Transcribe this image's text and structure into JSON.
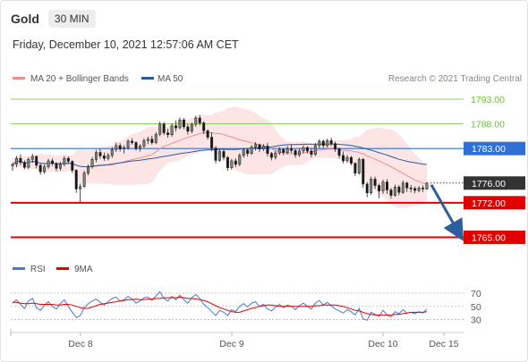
{
  "header": {
    "instrument": "Gold",
    "interval": "30 MIN",
    "datetime": "Friday, December 10, 2021 12:57:06 AM CET"
  },
  "credit": "Research © 2021 Trading Central",
  "legend": {
    "items": [
      {
        "label": "MA 20 + Bollinger Bands",
        "color": "#f08c8c"
      },
      {
        "label": "MA 50",
        "color": "#2b5a9c"
      }
    ]
  },
  "rsi_legend": {
    "items": [
      {
        "label": "RSI",
        "color": "#4a78d0"
      },
      {
        "label": "9MA",
        "color": "#e00000"
      }
    ]
  },
  "chart_data": [
    {
      "type": "candlestick",
      "title": "Gold",
      "x_labels": [
        "Dec 8",
        "Dec 9",
        "Dec 10",
        "Dec 15"
      ],
      "ylim": [
        1762,
        1795
      ],
      "current_price": {
        "value": "1776.00",
        "color": "#333333"
      },
      "levels": [
        {
          "value": "1793.00",
          "color": "#6cbf3a",
          "style": "thin",
          "label_style": "text"
        },
        {
          "value": "1788.00",
          "color": "#6cbf3a",
          "style": "thin",
          "label_style": "text"
        },
        {
          "value": "1783.00",
          "color": "#2f6fd6",
          "style": "medium",
          "label_style": "tag"
        },
        {
          "value": "1772.00",
          "color": "#e00000",
          "style": "thick",
          "label_style": "tag"
        },
        {
          "value": "1765.00",
          "color": "#e00000",
          "style": "thick",
          "label_style": "tag"
        }
      ],
      "forecast_arrow": {
        "from": 1776,
        "to": 1765,
        "color": "#2c5f9e"
      },
      "candles": [
        [
          1779.5,
          1780.0,
          1778.5,
          1779.8
        ],
        [
          1779.8,
          1781.5,
          1779.2,
          1781.0
        ],
        [
          1781.0,
          1781.8,
          1779.6,
          1780.2
        ],
        [
          1780.2,
          1780.6,
          1778.8,
          1779.2
        ],
        [
          1779.2,
          1781.2,
          1778.8,
          1780.8
        ],
        [
          1780.8,
          1781.9,
          1780.1,
          1781.4
        ],
        [
          1781.4,
          1781.6,
          1779.0,
          1779.6
        ],
        [
          1779.6,
          1779.9,
          1777.7,
          1778.3
        ],
        [
          1778.3,
          1779.8,
          1777.9,
          1779.3
        ],
        [
          1779.3,
          1780.9,
          1778.9,
          1780.5
        ],
        [
          1780.5,
          1781.0,
          1779.5,
          1780.0
        ],
        [
          1780.0,
          1780.2,
          1778.4,
          1779.0
        ],
        [
          1779.0,
          1780.3,
          1778.5,
          1779.8
        ],
        [
          1779.8,
          1781.5,
          1779.4,
          1781.0
        ],
        [
          1781.0,
          1781.4,
          1780.0,
          1780.4
        ],
        [
          1780.4,
          1780.6,
          1778.1,
          1778.6
        ],
        [
          1778.6,
          1778.8,
          1774.0,
          1774.8
        ],
        [
          1774.8,
          1775.9,
          1772.0,
          1775.3
        ],
        [
          1775.3,
          1778.5,
          1775.0,
          1778.0
        ],
        [
          1778.0,
          1779.8,
          1777.6,
          1779.3
        ],
        [
          1779.3,
          1781.3,
          1778.9,
          1780.8
        ],
        [
          1780.8,
          1782.7,
          1780.2,
          1782.2
        ],
        [
          1782.2,
          1782.9,
          1780.9,
          1781.5
        ],
        [
          1781.5,
          1782.2,
          1780.5,
          1781.0
        ],
        [
          1781.0,
          1782.1,
          1780.6,
          1781.6
        ],
        [
          1781.6,
          1783.3,
          1781.1,
          1782.8
        ],
        [
          1782.8,
          1784.2,
          1782.3,
          1783.6
        ],
        [
          1783.6,
          1784.1,
          1782.4,
          1782.9
        ],
        [
          1782.9,
          1783.7,
          1782.0,
          1783.2
        ],
        [
          1783.2,
          1784.9,
          1782.8,
          1784.5
        ],
        [
          1784.5,
          1785.1,
          1783.8,
          1784.2
        ],
        [
          1784.2,
          1784.5,
          1782.6,
          1783.0
        ],
        [
          1783.0,
          1783.9,
          1782.4,
          1783.5
        ],
        [
          1783.5,
          1785.1,
          1783.1,
          1784.6
        ],
        [
          1784.6,
          1785.4,
          1783.9,
          1784.9
        ],
        [
          1784.9,
          1785.6,
          1783.8,
          1784.2
        ],
        [
          1784.2,
          1786.3,
          1783.9,
          1785.9
        ],
        [
          1785.9,
          1788.5,
          1785.5,
          1788.0
        ],
        [
          1788.0,
          1788.4,
          1785.7,
          1786.2
        ],
        [
          1786.2,
          1787.0,
          1785.2,
          1785.8
        ],
        [
          1785.8,
          1788.1,
          1785.4,
          1787.6
        ],
        [
          1787.6,
          1788.7,
          1786.5,
          1787.2
        ],
        [
          1787.2,
          1789.3,
          1786.9,
          1788.8
        ],
        [
          1788.8,
          1789.2,
          1786.9,
          1787.4
        ],
        [
          1787.4,
          1788.0,
          1785.8,
          1786.5
        ],
        [
          1786.5,
          1788.3,
          1786.1,
          1787.9
        ],
        [
          1787.9,
          1789.6,
          1787.4,
          1789.2
        ],
        [
          1789.2,
          1789.8,
          1787.7,
          1788.2
        ],
        [
          1788.2,
          1788.5,
          1785.9,
          1786.6
        ],
        [
          1786.6,
          1786.9,
          1784.8,
          1785.3
        ],
        [
          1785.3,
          1786.3,
          1782.5,
          1783.1
        ],
        [
          1783.1,
          1783.5,
          1780.0,
          1780.6
        ],
        [
          1780.6,
          1782.9,
          1780.3,
          1782.4
        ],
        [
          1782.4,
          1782.8,
          1780.6,
          1781.2
        ],
        [
          1781.2,
          1781.5,
          1778.5,
          1779.1
        ],
        [
          1779.1,
          1780.9,
          1778.7,
          1780.5
        ],
        [
          1780.5,
          1781.0,
          1779.2,
          1779.8
        ],
        [
          1779.8,
          1782.0,
          1779.4,
          1781.6
        ],
        [
          1781.6,
          1783.1,
          1781.1,
          1782.7
        ],
        [
          1782.7,
          1783.1,
          1781.4,
          1782.0
        ],
        [
          1782.0,
          1783.7,
          1781.7,
          1783.3
        ],
        [
          1783.3,
          1784.3,
          1782.6,
          1783.8
        ],
        [
          1783.8,
          1784.0,
          1782.3,
          1782.9
        ],
        [
          1782.9,
          1783.9,
          1782.5,
          1783.5
        ],
        [
          1783.5,
          1784.2,
          1781.4,
          1782.0
        ],
        [
          1782.0,
          1782.3,
          1780.6,
          1781.2
        ],
        [
          1781.2,
          1782.6,
          1780.8,
          1782.1
        ],
        [
          1782.1,
          1783.3,
          1781.7,
          1782.8
        ],
        [
          1782.8,
          1783.1,
          1781.6,
          1782.2
        ],
        [
          1782.2,
          1783.5,
          1781.8,
          1783.0
        ],
        [
          1783.0,
          1783.8,
          1782.1,
          1782.6
        ],
        [
          1782.6,
          1782.9,
          1781.1,
          1781.7
        ],
        [
          1781.7,
          1783.0,
          1781.3,
          1782.5
        ],
        [
          1782.5,
          1783.7,
          1782.0,
          1783.2
        ],
        [
          1783.2,
          1783.5,
          1782.0,
          1782.5
        ],
        [
          1782.5,
          1783.1,
          1781.2,
          1781.8
        ],
        [
          1781.8,
          1784.1,
          1781.5,
          1783.6
        ],
        [
          1783.6,
          1784.9,
          1783.1,
          1784.5
        ],
        [
          1784.5,
          1784.8,
          1783.1,
          1783.6
        ],
        [
          1783.6,
          1785.0,
          1783.2,
          1784.6
        ],
        [
          1784.6,
          1785.2,
          1783.5,
          1784.0
        ],
        [
          1784.0,
          1784.4,
          1782.3,
          1782.9
        ],
        [
          1782.9,
          1783.2,
          1781.0,
          1781.6
        ],
        [
          1781.6,
          1782.4,
          1780.0,
          1780.5
        ],
        [
          1780.5,
          1781.7,
          1780.1,
          1781.2
        ],
        [
          1781.2,
          1781.5,
          1779.6,
          1780.0
        ],
        [
          1780.0,
          1780.2,
          1777.4,
          1778.0
        ],
        [
          1778.0,
          1781.2,
          1777.7,
          1780.8
        ],
        [
          1780.8,
          1781.1,
          1775.0,
          1775.8
        ],
        [
          1775.8,
          1776.2,
          1773.1,
          1774.0
        ],
        [
          1774.0,
          1777.3,
          1773.6,
          1776.8
        ],
        [
          1776.8,
          1777.3,
          1774.8,
          1775.5
        ],
        [
          1775.5,
          1775.9,
          1772.9,
          1774.4
        ],
        [
          1774.4,
          1776.7,
          1773.8,
          1776.2
        ],
        [
          1776.2,
          1776.8,
          1773.8,
          1774.6
        ],
        [
          1774.6,
          1775.0,
          1772.8,
          1773.5
        ],
        [
          1773.5,
          1775.7,
          1773.2,
          1775.2
        ],
        [
          1775.2,
          1775.6,
          1773.5,
          1774.1
        ],
        [
          1774.1,
          1776.5,
          1773.8,
          1776.0
        ],
        [
          1776.0,
          1776.3,
          1774.2,
          1775.0
        ],
        [
          1775.0,
          1775.6,
          1774.1,
          1774.9
        ],
        [
          1774.9,
          1775.3,
          1773.9,
          1774.5
        ],
        [
          1774.5,
          1775.4,
          1774.1,
          1775.0
        ],
        [
          1775.0,
          1775.5,
          1774.2,
          1774.8
        ],
        [
          1774.8,
          1776.2,
          1774.6,
          1776.0
        ]
      ]
    },
    {
      "type": "line",
      "title": "RSI",
      "yticks": [
        "70",
        "50",
        "30"
      ],
      "ylim": [
        20,
        78
      ],
      "series": [
        {
          "name": "RSI",
          "color": "#4a78d0",
          "values": [
            55,
            60,
            53,
            47,
            58,
            62,
            48,
            44,
            52,
            57,
            50,
            46,
            54,
            60,
            50,
            41,
            33,
            36,
            48,
            54,
            58,
            61,
            56,
            52,
            57,
            62,
            64,
            58,
            60,
            65,
            61,
            55,
            58,
            63,
            64,
            59,
            66,
            72,
            62,
            58,
            65,
            60,
            67,
            60,
            55,
            63,
            68,
            62,
            53,
            48,
            42,
            36,
            44,
            41,
            36,
            45,
            42,
            50,
            54,
            49,
            55,
            57,
            50,
            53,
            46,
            43,
            49,
            53,
            48,
            52,
            50,
            45,
            51,
            55,
            50,
            46,
            55,
            59,
            52,
            56,
            51,
            46,
            43,
            40,
            45,
            42,
            37,
            47,
            31,
            29,
            41,
            38,
            35,
            44,
            37,
            34,
            42,
            39,
            45,
            40,
            41,
            39,
            42,
            40,
            46
          ]
        },
        {
          "name": "9MA",
          "color": "#e00000",
          "values": [
            56,
            56,
            55,
            54,
            54,
            55,
            54,
            53,
            53,
            53,
            53,
            52,
            52,
            53,
            53,
            52,
            50,
            48,
            47,
            47,
            49,
            51,
            53,
            54,
            55,
            56,
            57,
            58,
            59,
            60,
            60,
            61,
            60,
            60,
            61,
            61,
            62,
            62,
            63,
            63,
            63,
            63,
            64,
            63,
            62,
            62,
            61,
            60,
            59,
            57,
            54,
            51,
            48,
            46,
            44,
            42,
            41,
            41,
            43,
            45,
            47,
            48,
            50,
            51,
            52,
            52,
            51,
            50,
            50,
            50,
            50,
            50,
            50,
            50,
            50,
            50,
            51,
            51,
            52,
            52,
            52,
            52,
            51,
            50,
            48,
            46,
            44,
            43,
            41,
            39,
            38,
            37,
            37,
            37,
            37,
            37,
            38,
            38,
            39,
            40,
            41,
            41,
            41,
            41,
            42
          ]
        }
      ]
    }
  ]
}
